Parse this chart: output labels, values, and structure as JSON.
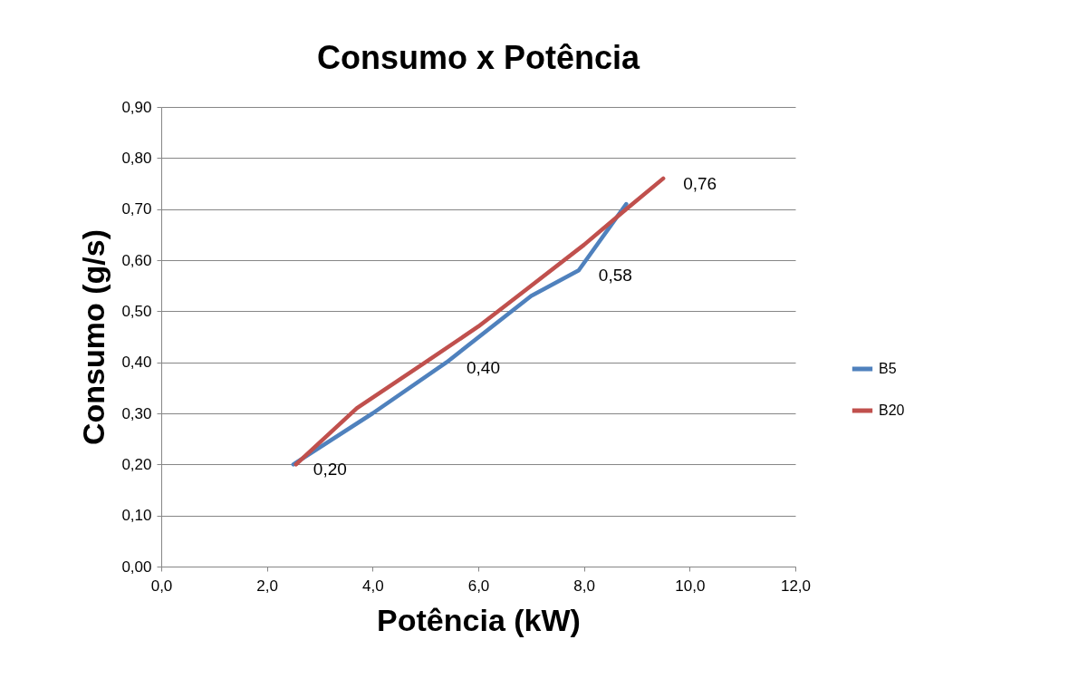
{
  "chart_data": {
    "type": "line",
    "title": "Consumo x Potência",
    "xlabel": "Potência (kW)",
    "ylabel": "Consumo  (g/s)",
    "xlim": [
      0,
      12
    ],
    "xticks": [
      {
        "value": 0,
        "label": "0,0"
      },
      {
        "value": 2,
        "label": "2,0"
      },
      {
        "value": 4,
        "label": "4,0"
      },
      {
        "value": 6,
        "label": "6,0"
      },
      {
        "value": 8,
        "label": "8,0"
      },
      {
        "value": 10,
        "label": "10,0"
      },
      {
        "value": 12,
        "label": "12,0"
      }
    ],
    "ylim": [
      0,
      0.9
    ],
    "yticks": [
      {
        "value": 0,
        "label": "0,00"
      },
      {
        "value": 0.1,
        "label": "0,10"
      },
      {
        "value": 0.2,
        "label": "0,20"
      },
      {
        "value": 0.3,
        "label": "0,30"
      },
      {
        "value": 0.4,
        "label": "0,40"
      },
      {
        "value": 0.5,
        "label": "0,50"
      },
      {
        "value": 0.6,
        "label": "0,60"
      },
      {
        "value": 0.7,
        "label": "0,70"
      },
      {
        "value": 0.8,
        "label": "0,80"
      },
      {
        "value": 0.9,
        "label": "0,90"
      }
    ],
    "grid": "y",
    "legend": "right",
    "marker": "none",
    "series": [
      {
        "name": "B5",
        "color": "#4f81bd",
        "x": [
          2.5,
          4.0,
          5.4,
          7.0,
          7.9,
          8.8
        ],
        "values": [
          0.2,
          0.3,
          0.4,
          0.53,
          0.58,
          0.71
        ],
        "value_labels": [
          "0,20",
          null,
          "0,40",
          null,
          "0,58",
          null
        ]
      },
      {
        "name": "B20",
        "color": "#c0504d",
        "x": [
          2.55,
          3.7,
          5.0,
          6.0,
          7.0,
          8.0,
          8.8,
          9.5
        ],
        "values": [
          0.2,
          0.31,
          0.4,
          0.47,
          0.55,
          0.63,
          0.7,
          0.76
        ],
        "value_labels": [
          null,
          null,
          null,
          null,
          null,
          null,
          null,
          "0,76"
        ]
      }
    ]
  }
}
